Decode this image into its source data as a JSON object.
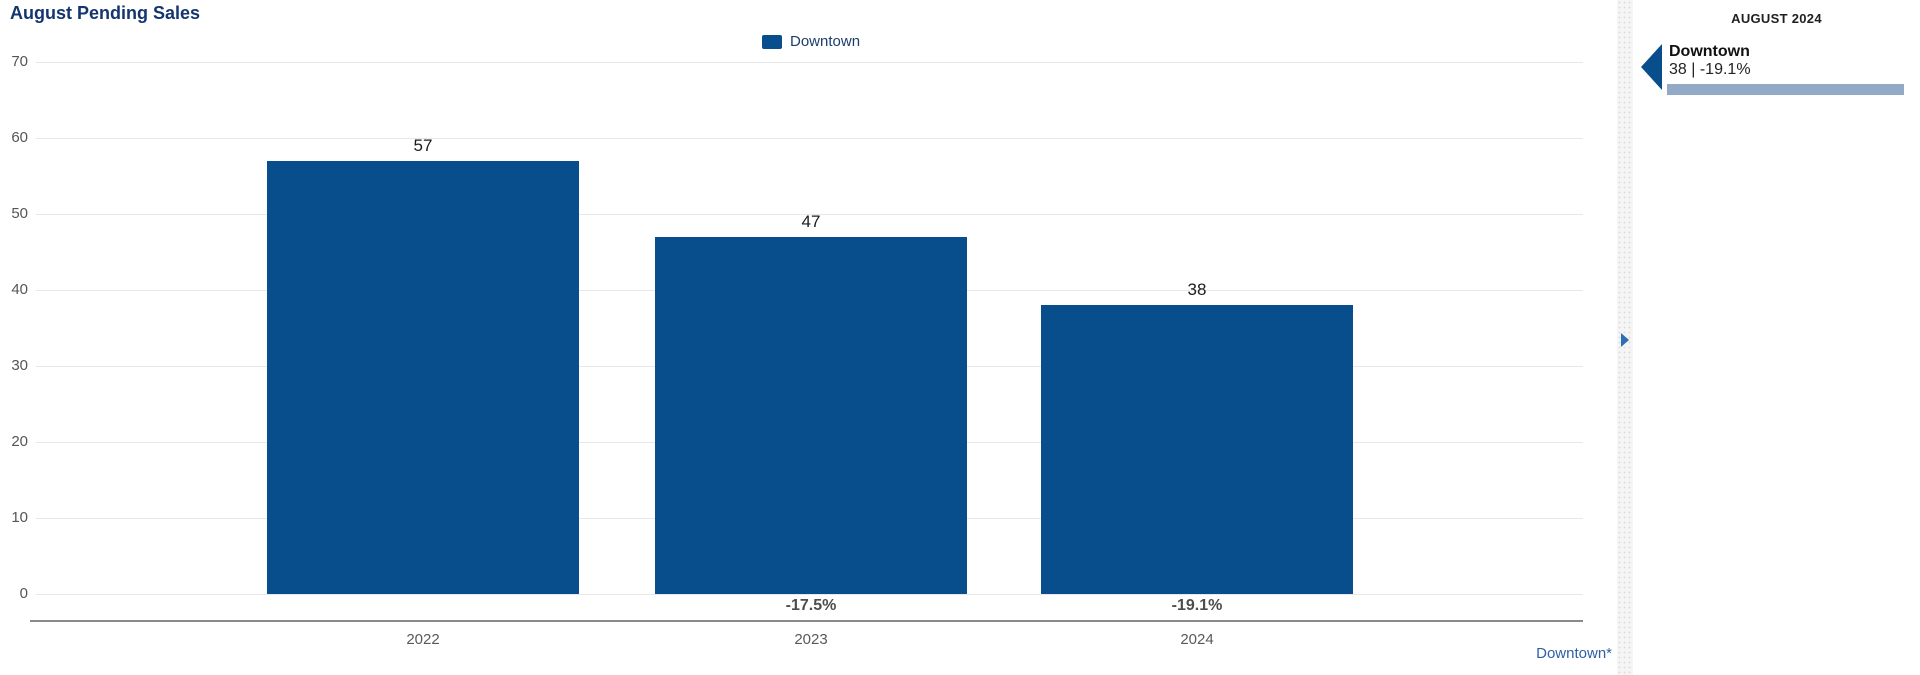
{
  "title": "August Pending Sales",
  "legend": {
    "label": "Downtown"
  },
  "chart_data": {
    "type": "bar",
    "title": "August Pending Sales",
    "categories": [
      "2022",
      "2023",
      "2024"
    ],
    "series": [
      {
        "name": "Downtown",
        "values": [
          57,
          47,
          38
        ],
        "color": "#094e8c"
      }
    ],
    "value_labels": [
      "57",
      "47",
      "38"
    ],
    "pct_change_labels": [
      null,
      "-17.5%",
      "-19.1%"
    ],
    "ylim": [
      0,
      70
    ],
    "ytick_step": 10,
    "grid": true,
    "legend_position": "top-center"
  },
  "footnote": "Downtown*",
  "side_panel": {
    "header": "AUGUST 2024",
    "stat": {
      "name": "Downtown",
      "value_line": "38 | -19.1%",
      "meter_color": "#92aac8",
      "pointer_color": "#094e8c"
    }
  },
  "colors": {
    "bar": "#094e8c",
    "title": "#14356e",
    "footnote_link": "#2e5fa3"
  }
}
